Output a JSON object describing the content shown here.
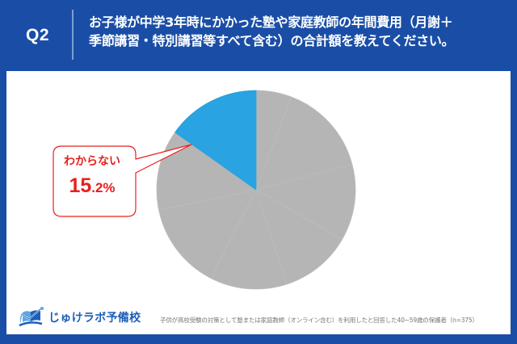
{
  "header": {
    "question_number": "Q2",
    "question_line1": "お子様が中学3年時にかかった塾や家庭教師の年間費用（月謝＋",
    "question_line2": "季節講習・特別講習等すべて含む）の合計額を教えてください。"
  },
  "callout": {
    "label": "わからない",
    "value_main": "15",
    "value_small": ".2%"
  },
  "footer": {
    "logo_text": "じゅけラボ予備校",
    "note": "子供が高校受験の対策として塾または家庭教師（オンライン含む）を利用したと回答した40~59歳の保護者（n=375）"
  },
  "colors": {
    "frame": "#1a4ea6",
    "highlight_slice": "#29a3e1",
    "other_slices": "#b5b5b5",
    "callout_accent": "#e8201f",
    "logo": "#1e5fb8"
  },
  "chart_data": {
    "type": "pie",
    "title": "お子様が中学3年時にかかった塾や家庭教師の年間費用（月謝＋季節講習・特別講習等すべて含む）の合計額を教えてください。",
    "start_angle_deg": 0,
    "direction": "clockwise",
    "categories": [
      "(unlabeled 1)",
      "(unlabeled 2)",
      "(unlabeled 3)",
      "(unlabeled 4)",
      "(unlabeled 5)",
      "(unlabeled 6)",
      "(unlabeled 7)",
      "わからない"
    ],
    "values": [
      5.8,
      15.1,
      12.4,
      11.7,
      12.5,
      14.2,
      13.1,
      15.2
    ],
    "highlighted": "わからない",
    "annotations": [
      {
        "label": "わからない",
        "value": "15.2%"
      }
    ],
    "legend": "none",
    "note": "子供が高校受験の対策として塾または家庭教師（オンライン含む）を利用したと回答した40~59歳の保護者（n=375）"
  }
}
